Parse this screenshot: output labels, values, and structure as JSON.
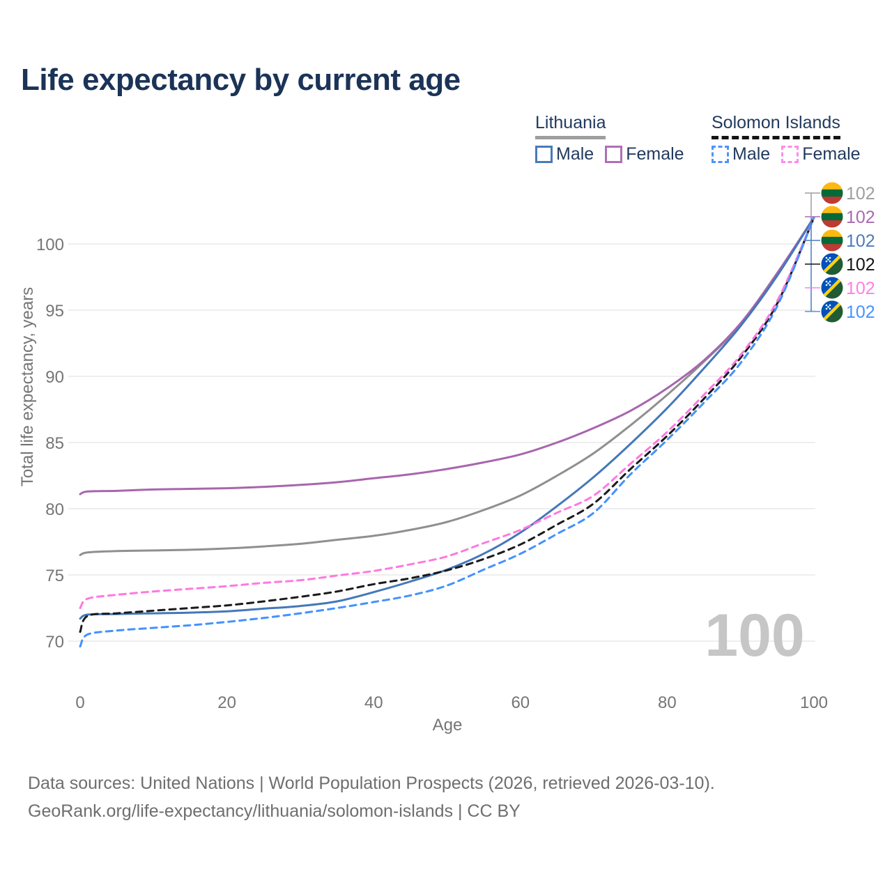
{
  "title": "Life expectancy by current age",
  "legend": {
    "groups": [
      {
        "name": "Lithuania",
        "line_style": "solid",
        "line_color": "#9e9e9e",
        "items": [
          {
            "label": "Male",
            "color": "#4a7ab8"
          },
          {
            "label": "Female",
            "color": "#b06fb5"
          }
        ]
      },
      {
        "name": "Solomon Islands",
        "line_style": "dashed",
        "line_color": "#141414",
        "items": [
          {
            "label": "Male",
            "color": "#4b94fb"
          },
          {
            "label": "Female",
            "color": "#fc8ceb"
          }
        ]
      }
    ]
  },
  "age_indicator": "100",
  "footer": {
    "line1": "Data sources: United Nations | World Population Prospects (2026, retrieved 2026-03-10).",
    "line2": "GeoRank.org/life-expectancy/lithuania/solomon-islands | CC BY"
  },
  "chart_data": {
    "type": "line",
    "title": "Life expectancy by current age",
    "xlabel": "Age",
    "ylabel": "Total life expectancy, years",
    "xlim": [
      0,
      100
    ],
    "ylim": [
      68,
      103
    ],
    "x_ticks": [
      0,
      20,
      40,
      60,
      80,
      100
    ],
    "y_ticks": [
      70,
      75,
      80,
      85,
      90,
      95,
      100
    ],
    "grid": "horizontal",
    "legend_position": "top-right",
    "x": [
      0,
      1,
      5,
      10,
      15,
      20,
      25,
      30,
      35,
      40,
      45,
      50,
      55,
      60,
      65,
      70,
      75,
      80,
      85,
      90,
      95,
      100
    ],
    "series": [
      {
        "name": "Lithuania Both sexes",
        "country": "Lithuania",
        "sex": "Both sexes",
        "color": "#8f8f8f",
        "dash": false,
        "flag": "lt",
        "label_color": "#9e9e9e",
        "end_label": "102",
        "values": [
          76.5,
          76.7,
          76.8,
          76.85,
          76.9,
          77.0,
          77.15,
          77.35,
          77.65,
          77.95,
          78.4,
          79.0,
          79.9,
          81.0,
          82.5,
          84.2,
          86.3,
          88.6,
          91.1,
          93.9,
          97.7,
          102
        ]
      },
      {
        "name": "Lithuania Female",
        "country": "Lithuania",
        "sex": "Female",
        "color": "#a865ae",
        "dash": false,
        "flag": "lt",
        "label_color": "#a968b0",
        "end_label": "102",
        "values": [
          81.1,
          81.3,
          81.35,
          81.45,
          81.5,
          81.55,
          81.65,
          81.8,
          82.0,
          82.3,
          82.6,
          83.0,
          83.5,
          84.1,
          85.0,
          86.1,
          87.4,
          89.1,
          91.2,
          94.0,
          97.8,
          102
        ]
      },
      {
        "name": "Lithuania Male",
        "country": "Lithuania",
        "sex": "Male",
        "color": "#4478b9",
        "dash": false,
        "flag": "lt",
        "label_color": "#4a7bbd",
        "end_label": "102",
        "values": [
          71.7,
          72.0,
          72.05,
          72.1,
          72.15,
          72.25,
          72.45,
          72.65,
          73.0,
          73.7,
          74.5,
          75.4,
          76.6,
          78.2,
          80.2,
          82.4,
          84.9,
          87.6,
          90.6,
          93.8,
          97.6,
          102
        ]
      },
      {
        "name": "Solomon Islands Both sexes",
        "country": "Solomon Islands",
        "sex": "Both sexes",
        "color": "#1a1a1a",
        "dash": true,
        "flag": "si",
        "label_color": "#141414",
        "end_label": "102",
        "values": [
          70.7,
          71.9,
          72.1,
          72.3,
          72.5,
          72.7,
          73.0,
          73.35,
          73.75,
          74.3,
          74.75,
          75.35,
          76.2,
          77.3,
          78.8,
          80.4,
          83.0,
          85.5,
          88.3,
          91.4,
          95.5,
          102
        ]
      },
      {
        "name": "Solomon Islands Female",
        "country": "Solomon Islands",
        "sex": "Female",
        "color": "#ff78e0",
        "dash": true,
        "flag": "si",
        "label_color": "#ff7ee6",
        "end_label": "102",
        "values": [
          72.5,
          73.2,
          73.5,
          73.75,
          73.95,
          74.15,
          74.4,
          74.6,
          74.95,
          75.3,
          75.8,
          76.4,
          77.4,
          78.4,
          79.7,
          81.0,
          83.4,
          85.8,
          88.6,
          91.6,
          95.7,
          102
        ]
      },
      {
        "name": "Solomon Islands Male",
        "country": "Solomon Islands",
        "sex": "Male",
        "color": "#4392fd",
        "dash": true,
        "flag": "si",
        "label_color": "#4792ff",
        "end_label": "102",
        "values": [
          69.6,
          70.5,
          70.8,
          71.0,
          71.2,
          71.45,
          71.75,
          72.1,
          72.5,
          72.95,
          73.45,
          74.2,
          75.4,
          76.6,
          78.1,
          79.7,
          82.6,
          85.2,
          88.0,
          91.0,
          95.3,
          102
        ]
      }
    ]
  }
}
